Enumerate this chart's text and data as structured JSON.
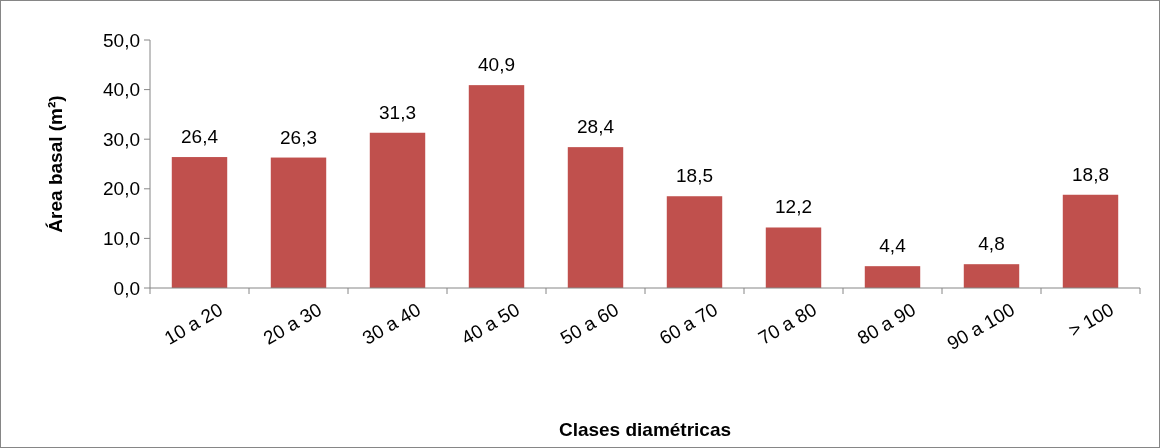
{
  "chart_data": {
    "type": "bar",
    "xlabel": "Clases diamétricas",
    "ylabel": "Área basal (m²)",
    "categories": [
      "10 a 20",
      "20 a 30",
      "30 a 40",
      "40 a 50",
      "50 a 60",
      "60 a 70",
      "70 a 80",
      "80 a 90",
      "90 a 100",
      "> 100"
    ],
    "values": [
      26.4,
      26.3,
      31.3,
      40.9,
      28.4,
      18.5,
      12.2,
      4.4,
      4.8,
      18.8
    ],
    "value_labels": [
      "26,4",
      "26,3",
      "31,3",
      "40,9",
      "28,4",
      "18,5",
      "12,2",
      "4,4",
      "4,8",
      "18,8"
    ],
    "color": "#c0504d",
    "ylim": [
      0,
      50
    ],
    "yticks": [
      {
        "value": 0,
        "label": "0,0"
      },
      {
        "value": 10,
        "label": "10,0"
      },
      {
        "value": 20,
        "label": "20,0"
      },
      {
        "value": 30,
        "label": "30,0"
      },
      {
        "value": 40,
        "label": "40,0"
      },
      {
        "value": 50,
        "label": "50,0"
      }
    ],
    "grid": false
  }
}
